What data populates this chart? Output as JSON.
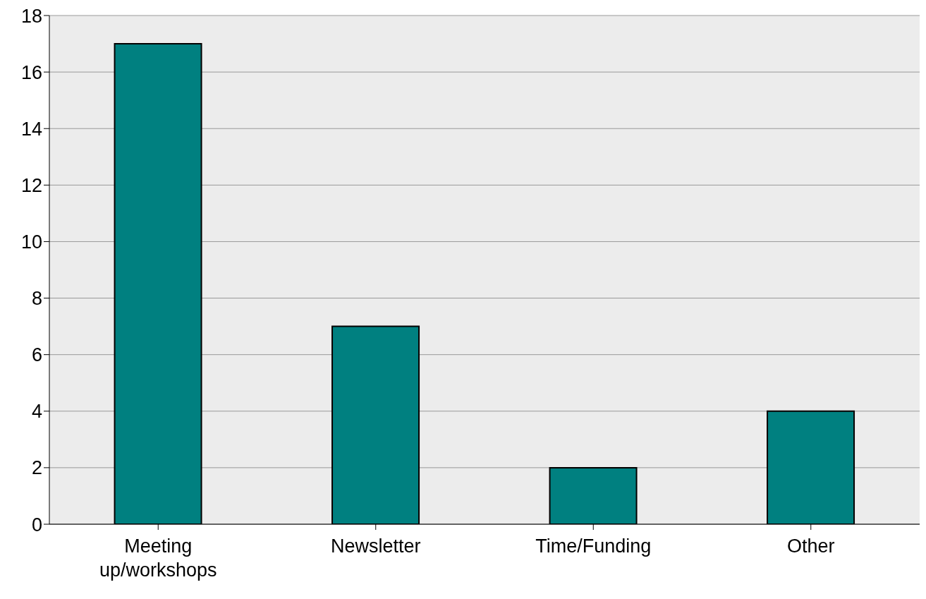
{
  "chart_data": {
    "type": "bar",
    "categories": [
      "Meeting up/workshops",
      "Newsletter",
      "Time/Funding",
      "Other"
    ],
    "values": [
      17,
      7,
      2,
      4
    ],
    "color": "#008080",
    "ylim": [
      0,
      18
    ],
    "yticks": [
      0,
      2,
      4,
      6,
      8,
      10,
      12,
      14,
      16,
      18
    ],
    "grid": "y"
  }
}
